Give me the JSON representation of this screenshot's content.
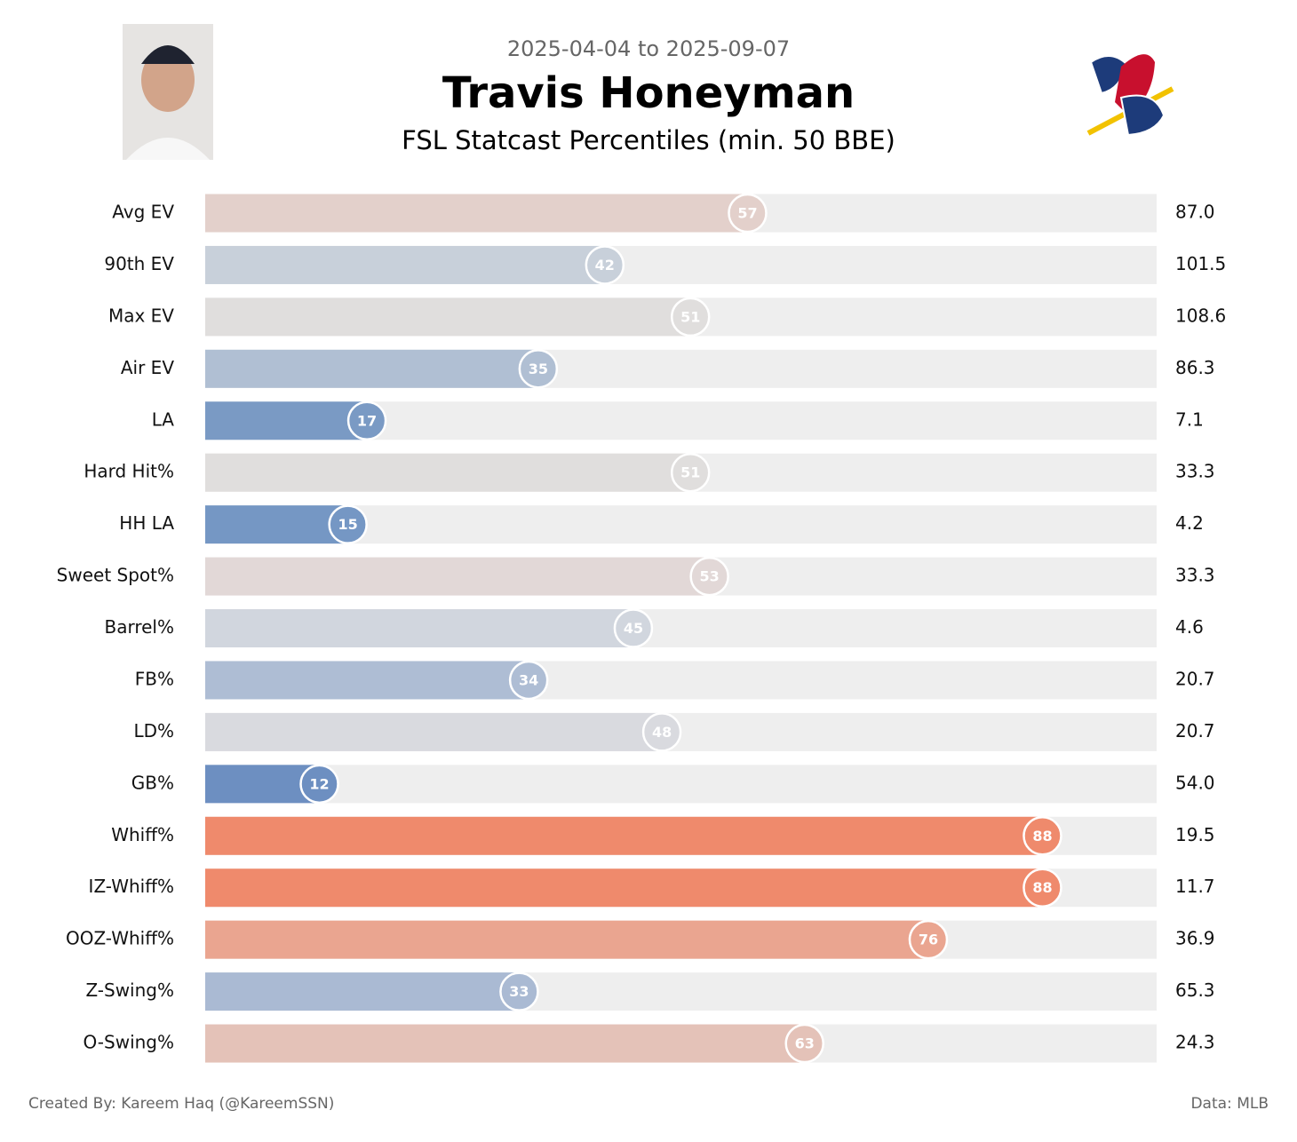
{
  "chart_data": {
    "type": "percentile_bar",
    "subtitle_top": "2025-04-04 to 2025-09-07",
    "title": "Travis Honeyman",
    "subtitle": "FSL Statcast Percentiles (min. 50 BBE)",
    "categories": [
      "Avg EV",
      "90th EV",
      "Max EV",
      "Air EV",
      "LA",
      "Hard Hit%",
      "HH LA",
      "Sweet Spot%",
      "Barrel%",
      "FB%",
      "LD%",
      "GB%",
      "Whiff%",
      "IZ-Whiff%",
      "OOZ-Whiff%",
      "Z-Swing%",
      "O-Swing%"
    ],
    "values": [
      57,
      42,
      51,
      35,
      17,
      51,
      15,
      53,
      45,
      34,
      48,
      12,
      88,
      88,
      76,
      33,
      63
    ],
    "stats": [
      "87.0",
      "101.5",
      "108.6",
      "86.3",
      "7.1",
      "33.3",
      "4.2",
      "33.3",
      "4.6",
      "20.7",
      "20.7",
      "54.0",
      "19.5",
      "11.7",
      "36.9",
      "65.3",
      "24.3"
    ],
    "colors": [
      "#e3d0cb",
      "#c8d0da",
      "#e0dedd",
      "#b0bfd3",
      "#7a9ac4",
      "#e0dedd",
      "#7597c4",
      "#e2d8d7",
      "#d1d6de",
      "#aebdd4",
      "#d9dadf",
      "#6d8fc1",
      "#ef8a6c",
      "#ef8a6c",
      "#eaa590",
      "#aabad3",
      "#e4c2b8"
    ],
    "track_color": "#eeeeee",
    "xlim": [
      0,
      100
    ],
    "footer_left": "Created By: Kareem Haq (@KareemSSN)",
    "footer_right": "Data: MLB"
  }
}
